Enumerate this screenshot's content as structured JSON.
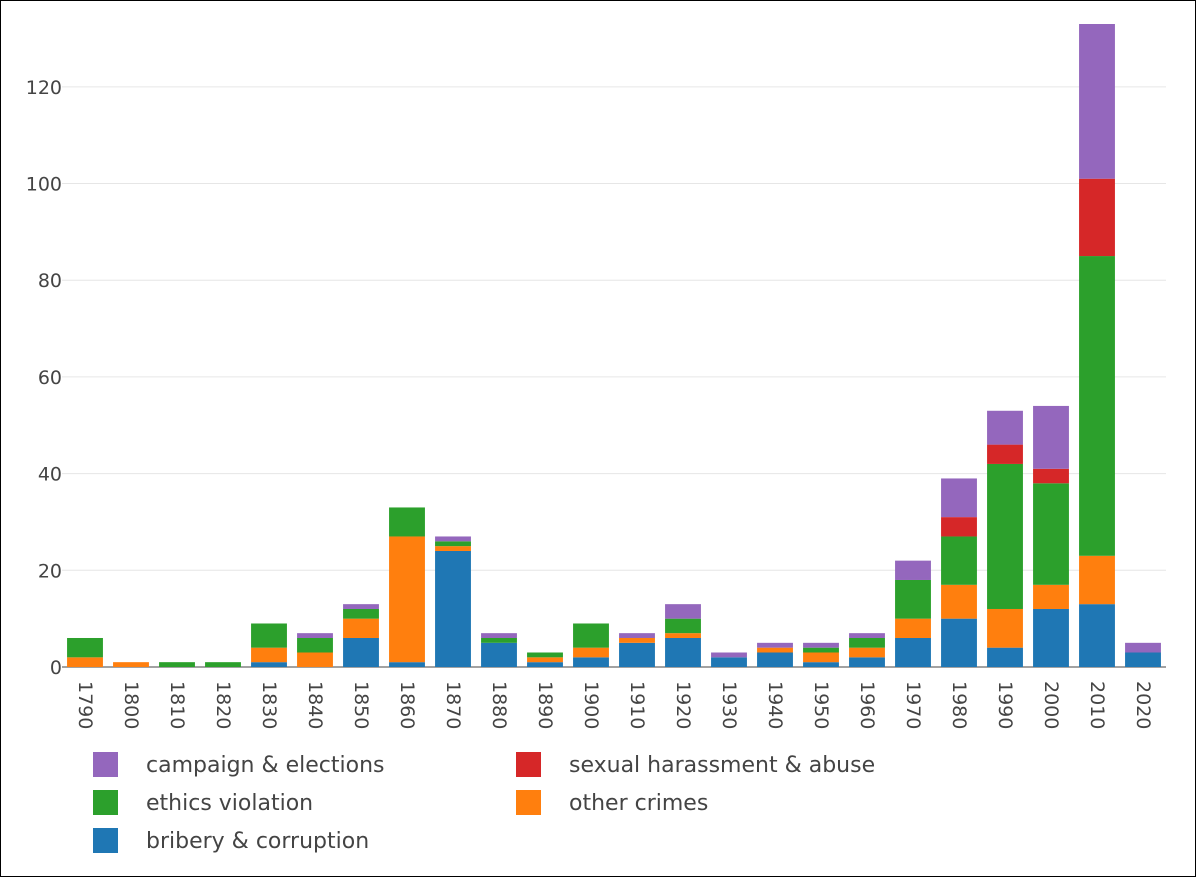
{
  "chart_data": {
    "type": "bar",
    "stacked": true,
    "title": "",
    "xlabel": "",
    "ylabel": "",
    "ylim": [
      0,
      133
    ],
    "y_ticks": [
      0,
      20,
      40,
      60,
      80,
      100,
      120
    ],
    "y_tick_labels": [
      "0",
      "20",
      "40",
      "60",
      "80",
      "100",
      "120"
    ],
    "grid": true,
    "legend_position": "bottom",
    "categories": [
      "1790",
      "1800",
      "1810",
      "1820",
      "1830",
      "1840",
      "1850",
      "1860",
      "1870",
      "1880",
      "1890",
      "1900",
      "1910",
      "1920",
      "1930",
      "1940",
      "1950",
      "1960",
      "1970",
      "1980",
      "1990",
      "2000",
      "2010",
      "2020"
    ],
    "series": [
      {
        "name": "bribery & corruption",
        "color": "#1f77b4",
        "values": [
          0,
          0,
          0,
          0,
          1,
          0,
          6,
          1,
          24,
          5,
          1,
          2,
          5,
          6,
          2,
          3,
          1,
          2,
          6,
          10,
          4,
          12,
          13,
          3
        ]
      },
      {
        "name": "other crimes",
        "color": "#ff7f0e",
        "values": [
          2,
          1,
          0,
          0,
          3,
          3,
          4,
          26,
          1,
          0,
          1,
          2,
          1,
          1,
          0,
          1,
          2,
          2,
          4,
          7,
          8,
          5,
          10,
          0
        ]
      },
      {
        "name": "ethics violation",
        "color": "#2ca02c",
        "values": [
          4,
          0,
          1,
          1,
          5,
          3,
          2,
          6,
          1,
          1,
          1,
          5,
          0,
          3,
          0,
          0,
          1,
          2,
          8,
          10,
          30,
          21,
          62,
          0
        ]
      },
      {
        "name": "sexual harassment & abuse",
        "color": "#d62728",
        "values": [
          0,
          0,
          0,
          0,
          0,
          0,
          0,
          0,
          0,
          0,
          0,
          0,
          0,
          0,
          0,
          0,
          0,
          0,
          0,
          4,
          4,
          3,
          16,
          0
        ]
      },
      {
        "name": "campaign & elections",
        "color": "#9467bd",
        "values": [
          0,
          0,
          0,
          0,
          0,
          1,
          1,
          0,
          1,
          1,
          0,
          0,
          1,
          3,
          1,
          1,
          1,
          1,
          4,
          8,
          7,
          13,
          32,
          2
        ]
      }
    ],
    "legend_order": [
      "campaign & elections",
      "sexual harassment & abuse",
      "ethics violation",
      "other crimes",
      "bribery & corruption"
    ]
  }
}
